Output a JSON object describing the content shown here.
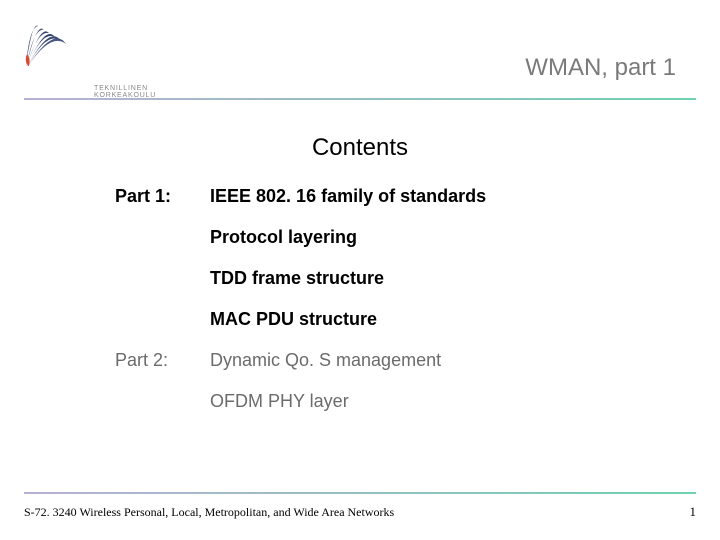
{
  "header": {
    "logo_text": "TEKNILLINEN KORKEAKOULU",
    "title": "WMAN, part 1"
  },
  "content": {
    "title": "Contents",
    "parts": [
      {
        "label": "Part 1:",
        "bold": true,
        "items": [
          "IEEE 802. 16 family of standards",
          "Protocol layering",
          "TDD frame structure",
          "MAC PDU structure"
        ]
      },
      {
        "label": "Part 2:",
        "bold": false,
        "items": [
          "Dynamic Qo. S management",
          "OFDM PHY layer"
        ]
      }
    ]
  },
  "footer": {
    "text": "S-72. 3240 Wireless Personal, Local, Metropolitan, and Wide Area Networks",
    "page": "1"
  },
  "style": {
    "rule_gradient_from": "#b9b0d4",
    "rule_gradient_to": "#6fd1b0",
    "muted_color": "#6b6b6b",
    "logo_fill": "#2a3a6a",
    "logo_accent": "#d64a2f"
  }
}
